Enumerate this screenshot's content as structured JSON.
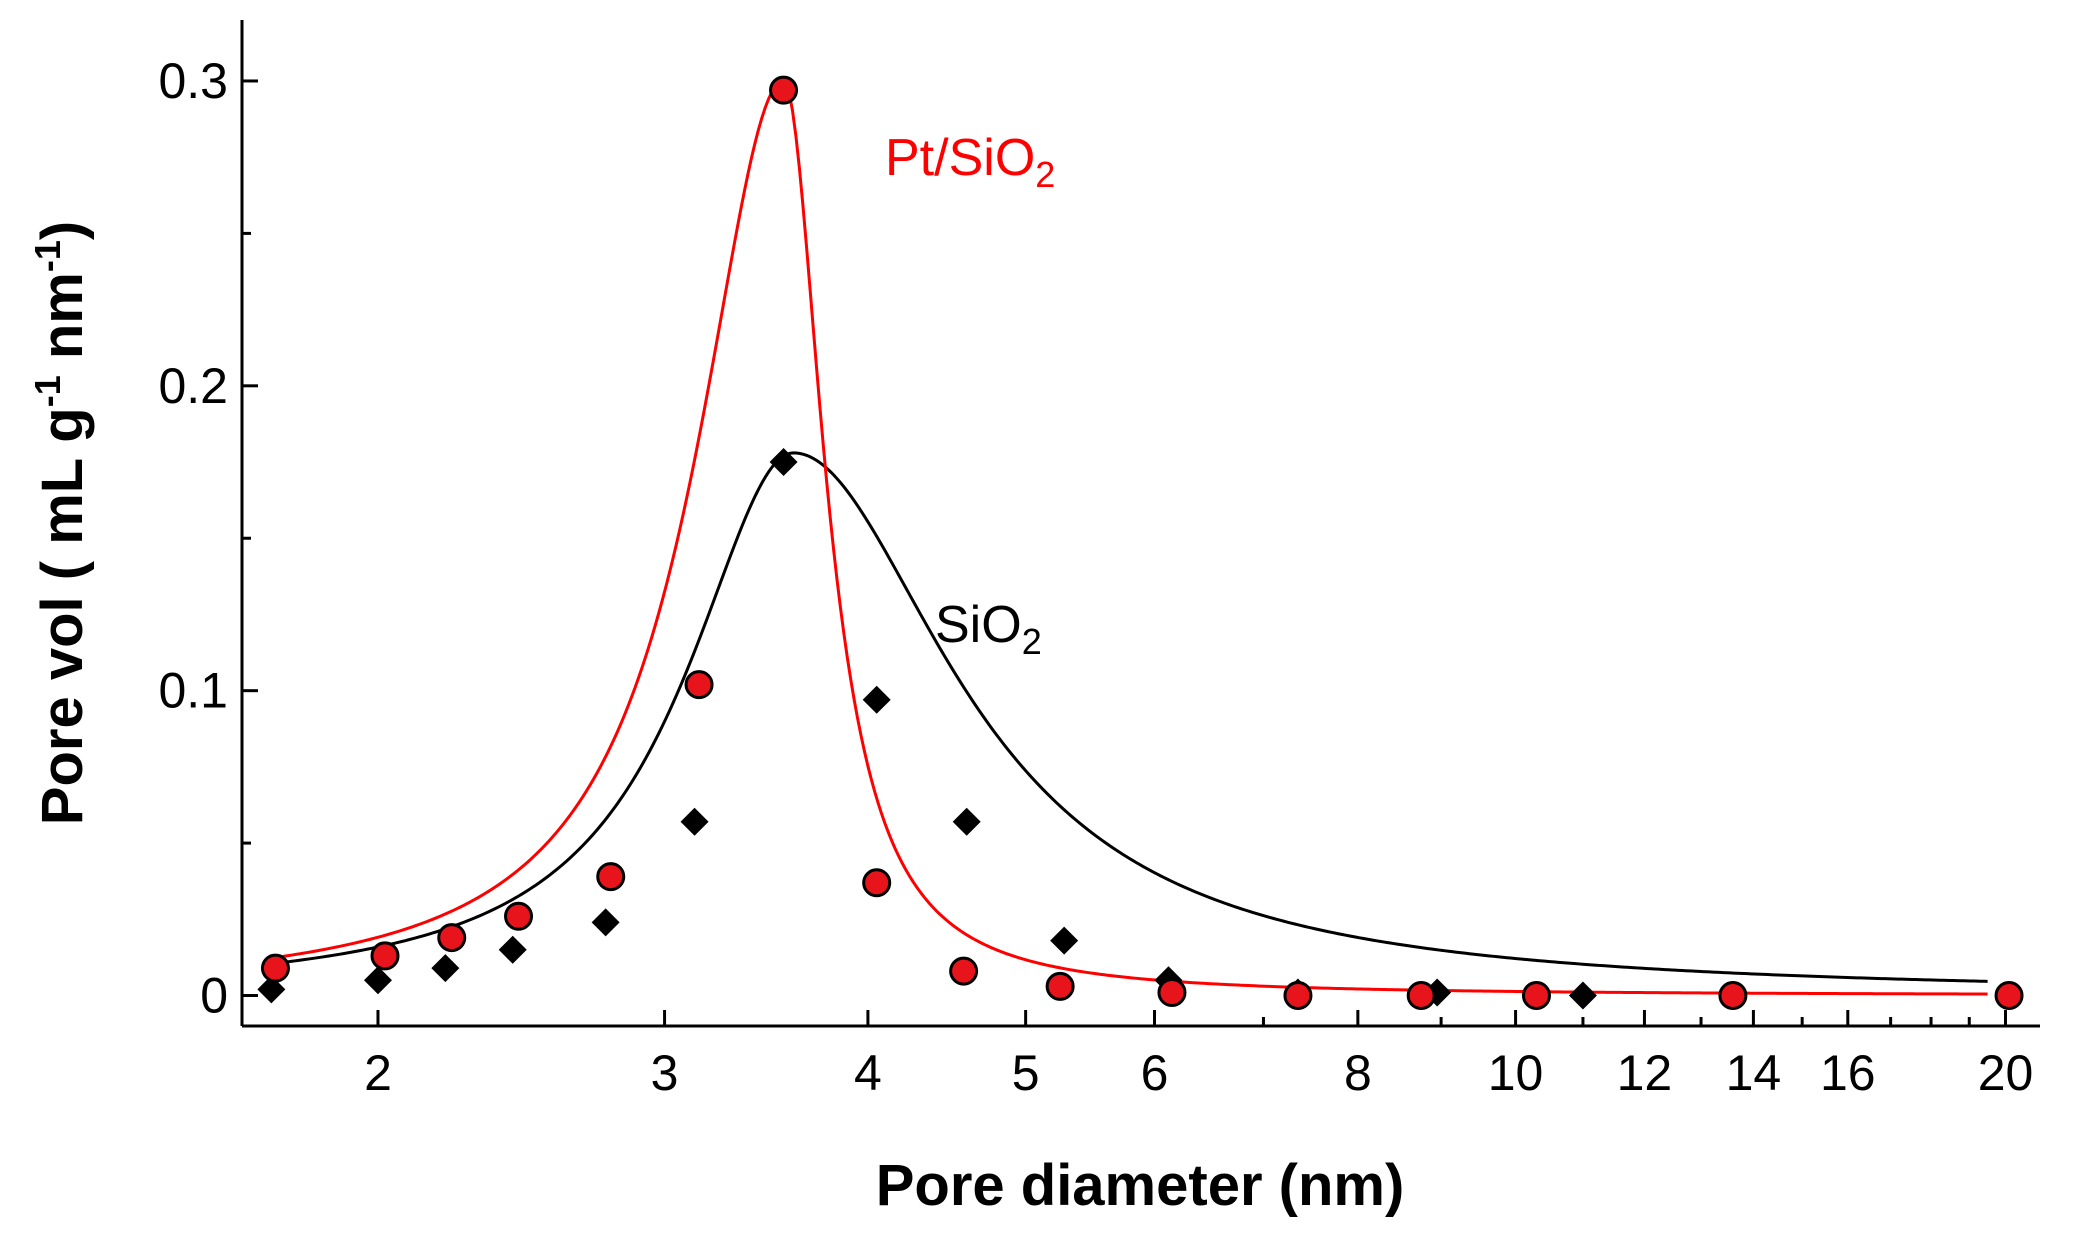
{
  "chart_data": {
    "type": "scatter",
    "title": "",
    "xlabel": "Pore diameter (nm)",
    "ylabel": "Pore vol ( mL g-1 nm-1)",
    "ylabel_parts": [
      "Pore vol ( mL g",
      "-1",
      " nm",
      "-1",
      ")"
    ],
    "xscale": "log",
    "xlim": [
      1.65,
      21
    ],
    "ylim": [
      -0.01,
      0.32
    ],
    "x_ticks": [
      2,
      3,
      4,
      5,
      6,
      8,
      10,
      12,
      14,
      16,
      20
    ],
    "y_ticks": [
      0,
      0.1,
      0.2,
      0.3
    ],
    "y_tick_labels": [
      "0",
      "0.1",
      "0.2",
      "0.3"
    ],
    "grid": false,
    "series": [
      {
        "name": "SiO2",
        "label_main": "SiO",
        "label_sub": "2",
        "marker": "diamond",
        "color": "#000000",
        "fit_color": "#000000",
        "points": [
          {
            "x": 1.72,
            "y": 0.002
          },
          {
            "x": 2.0,
            "y": 0.005
          },
          {
            "x": 2.2,
            "y": 0.009
          },
          {
            "x": 2.42,
            "y": 0.015
          },
          {
            "x": 2.76,
            "y": 0.024
          },
          {
            "x": 3.13,
            "y": 0.057
          },
          {
            "x": 3.55,
            "y": 0.175
          },
          {
            "x": 4.05,
            "y": 0.097
          },
          {
            "x": 4.6,
            "y": 0.057
          },
          {
            "x": 5.28,
            "y": 0.018
          },
          {
            "x": 6.12,
            "y": 0.005
          },
          {
            "x": 7.35,
            "y": 0.001
          },
          {
            "x": 8.95,
            "y": 0.001
          },
          {
            "x": 11.0,
            "y": 0.0
          },
          {
            "x": 13.6,
            "y": 0.0
          },
          {
            "x": 20.1,
            "y": 0.0
          }
        ],
        "fit": {
          "peak_x": 3.6,
          "peak_y": 0.178,
          "left_width": 0.08,
          "right_width": 0.12,
          "end_x": 19.5
        }
      },
      {
        "name": "Pt/SiO2",
        "label_main": "Pt/SiO",
        "label_sub": "2",
        "marker": "circle",
        "color": "#e8141c",
        "fit_color": "#ff0000",
        "points": [
          {
            "x": 1.73,
            "y": 0.009
          },
          {
            "x": 2.02,
            "y": 0.013
          },
          {
            "x": 2.22,
            "y": 0.019
          },
          {
            "x": 2.44,
            "y": 0.026
          },
          {
            "x": 2.78,
            "y": 0.039
          },
          {
            "x": 3.15,
            "y": 0.102
          },
          {
            "x": 3.55,
            "y": 0.297
          },
          {
            "x": 4.05,
            "y": 0.037
          },
          {
            "x": 4.58,
            "y": 0.008
          },
          {
            "x": 5.25,
            "y": 0.003
          },
          {
            "x": 6.15,
            "y": 0.001
          },
          {
            "x": 7.35,
            "y": 0.0
          },
          {
            "x": 8.75,
            "y": 0.0
          },
          {
            "x": 10.3,
            "y": 0.0
          },
          {
            "x": 13.6,
            "y": 0.0
          },
          {
            "x": 20.1,
            "y": 0.0
          }
        ],
        "fit": {
          "peak_x": 3.55,
          "peak_y": 0.3,
          "left_width": 0.065,
          "right_width": 0.03,
          "end_x": 19.5
        }
      }
    ]
  }
}
